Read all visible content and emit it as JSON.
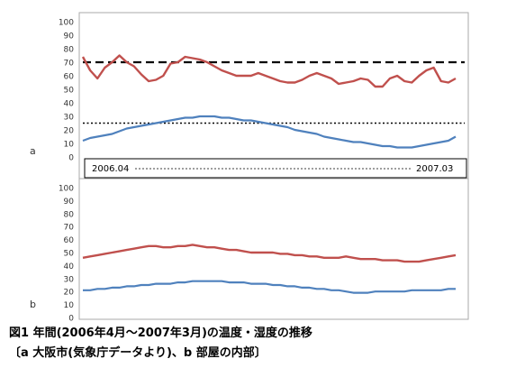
{
  "caption_line1": "図1 年間(2006年4月～2007年3月)の温度・湿度の推移",
  "caption_line2": "〔a 大阪市(気象庁データより)、b 部屋の内部〕",
  "panel_a_label": "a",
  "panel_b_label": "b",
  "axis_note_start": "2006.04",
  "axis_note_end": "2007.03",
  "colors": {
    "humidity": "#c0504d",
    "temperature": "#4f81bd"
  },
  "chart_data": [
    {
      "type": "line",
      "panel": "a",
      "ylim": [
        0,
        100
      ],
      "yticks": [
        0,
        10,
        20,
        30,
        40,
        50,
        60,
        70,
        80,
        90,
        100
      ],
      "x_range": [
        "2006.04",
        "2007.03"
      ],
      "series": [
        {
          "key": "humidity",
          "color": "#c0504d",
          "values": [
            74,
            64,
            58,
            66,
            70,
            75,
            70,
            67,
            61,
            56,
            57,
            60,
            69,
            70,
            74,
            73,
            72,
            70,
            67,
            64,
            62,
            60,
            60,
            60,
            62,
            60,
            58,
            56,
            55,
            55,
            57,
            60,
            62,
            60,
            58,
            54,
            55,
            56,
            58,
            57,
            52,
            52,
            58,
            60,
            56,
            55,
            60,
            64,
            66,
            56,
            55,
            58
          ]
        },
        {
          "key": "temperature",
          "color": "#4f81bd",
          "values": [
            12,
            14,
            15,
            16,
            17,
            19,
            21,
            22,
            23,
            24,
            25,
            26,
            27,
            28,
            29,
            29,
            30,
            30,
            30,
            29,
            29,
            28,
            27,
            27,
            26,
            25,
            24,
            23,
            22,
            20,
            19,
            18,
            17,
            15,
            14,
            13,
            12,
            11,
            11,
            10,
            9,
            8,
            8,
            7,
            7,
            7,
            8,
            9,
            10,
            11,
            12,
            15
          ]
        }
      ],
      "reference_lines": [
        {
          "value": 70,
          "style": "dashed"
        },
        {
          "value": 25,
          "style": "dotted"
        }
      ]
    },
    {
      "type": "line",
      "panel": "b",
      "ylim": [
        0,
        100
      ],
      "yticks": [
        0,
        10,
        20,
        30,
        40,
        50,
        60,
        70,
        80,
        90,
        100
      ],
      "series": [
        {
          "key": "humidity",
          "color": "#c0504d",
          "values": [
            46,
            47,
            48,
            49,
            50,
            51,
            52,
            53,
            54,
            55,
            55,
            54,
            54,
            55,
            55,
            56,
            55,
            54,
            54,
            53,
            52,
            52,
            51,
            50,
            50,
            50,
            50,
            49,
            49,
            48,
            48,
            47,
            47,
            46,
            46,
            46,
            47,
            46,
            45,
            45,
            45,
            44,
            44,
            44,
            43,
            43,
            43,
            44,
            45,
            46,
            47,
            48
          ]
        },
        {
          "key": "temperature",
          "color": "#4f81bd",
          "values": [
            21,
            21,
            22,
            22,
            23,
            23,
            24,
            24,
            25,
            25,
            26,
            26,
            26,
            27,
            27,
            28,
            28,
            28,
            28,
            28,
            27,
            27,
            27,
            26,
            26,
            26,
            25,
            25,
            24,
            24,
            23,
            23,
            22,
            22,
            21,
            21,
            20,
            19,
            19,
            19,
            20,
            20,
            20,
            20,
            20,
            21,
            21,
            21,
            21,
            21,
            22,
            22
          ]
        }
      ]
    }
  ]
}
